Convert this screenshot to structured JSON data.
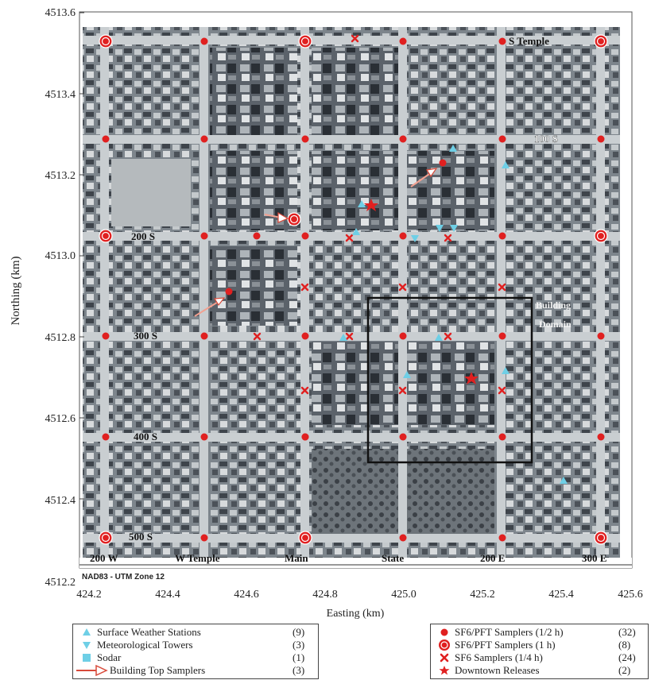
{
  "map": {
    "y_axis_label": "Northing (km)",
    "x_axis_label": "Easting (km)",
    "y_ticks": [
      "4513.6",
      "4513.4",
      "4513.2",
      "4513.0",
      "4512.8",
      "4512.6",
      "4512.4",
      "4512.2"
    ],
    "x_ticks": [
      "424.2",
      "424.4",
      "424.6",
      "424.8",
      "425.0",
      "425.2",
      "425.4",
      "425.6"
    ],
    "x_range": [
      424.2,
      425.6
    ],
    "y_range": [
      4512.2,
      4513.6
    ],
    "projection_note": "NAD83 - UTM Zone 12",
    "street_labels": {
      "s_temple": "S Temple",
      "s100": "100 S",
      "s200": "200 S",
      "s300": "300 S",
      "s400": "400 S",
      "s500": "500 S",
      "w200": "200 W",
      "w_temple": "W Temple",
      "main": "Main",
      "state": "State",
      "e200": "200 E",
      "e300": "300 E"
    },
    "domain_label_1": "Building",
    "domain_label_2": "Domain",
    "colors": {
      "sampler": "#e02020",
      "weather": "#6ecfe6",
      "arrow": "#d84a3a",
      "photo_dark": "#3b4048",
      "photo_light": "#b9bfc4"
    }
  },
  "legend_left": {
    "items": [
      {
        "label": "Surface Weather Stations",
        "count": "(9)",
        "icon": "triangle-up-icon"
      },
      {
        "label": "Meteorological Towers",
        "count": "(3)",
        "icon": "triangle-down-icon"
      },
      {
        "label": "Sodar",
        "count": "(1)",
        "icon": "square-icon"
      },
      {
        "label": "Building Top Samplers",
        "count": "(3)",
        "icon": "arrow-icon"
      }
    ]
  },
  "legend_right": {
    "items": [
      {
        "label": "SF6/PFT Samplers (1/2 h)",
        "count": "(32)",
        "icon": "red-dot-icon"
      },
      {
        "label": "SF6/PFT Samplers (1 h)",
        "count": "(8)",
        "icon": "red-ring-icon"
      },
      {
        "label": "SF6 Samplers (1/4 h)",
        "count": "(24)",
        "icon": "red-cross-icon"
      },
      {
        "label": "Downtown Releases",
        "count": "(2)",
        "icon": "red-star-icon"
      }
    ]
  }
}
